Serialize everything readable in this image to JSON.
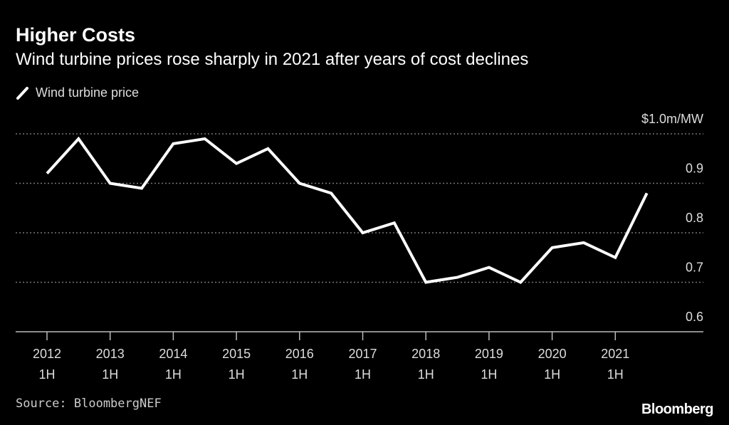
{
  "title": "Higher Costs",
  "subtitle": "Wind turbine prices rose sharply in 2021 after years of cost declines",
  "source": "Source: BloombergNEF",
  "logo": "Bloomberg",
  "chart_data": {
    "type": "line",
    "title": "Higher Costs",
    "subtitle": "Wind turbine prices rose sharply in 2021 after years of cost declines",
    "ylabel_unit": "$1.0m/MW",
    "ylim": [
      0.6,
      1.0
    ],
    "yticks": [
      0.6,
      0.7,
      0.8,
      0.9,
      1.0
    ],
    "ytick_labels": [
      "0.6",
      "0.7",
      "0.8",
      "0.9",
      "$1.0m/MW"
    ],
    "xtick_labels": [
      [
        "2012",
        "1H"
      ],
      [
        "2013",
        "1H"
      ],
      [
        "2014",
        "1H"
      ],
      [
        "2015",
        "1H"
      ],
      [
        "2016",
        "1H"
      ],
      [
        "2017",
        "1H"
      ],
      [
        "2018",
        "1H"
      ],
      [
        "2019",
        "1H"
      ],
      [
        "2020",
        "1H"
      ],
      [
        "2021",
        "1H"
      ]
    ],
    "grid": true,
    "legend_position": "top-left",
    "line_color": "#ffffff",
    "x": [
      "2012 1H",
      "2012 2H",
      "2013 1H",
      "2013 2H",
      "2014 1H",
      "2014 2H",
      "2015 1H",
      "2015 2H",
      "2016 1H",
      "2016 2H",
      "2017 1H",
      "2017 2H",
      "2018 1H",
      "2018 2H",
      "2019 1H",
      "2019 2H",
      "2020 1H",
      "2020 2H",
      "2021 1H",
      "2021 2H"
    ],
    "series": [
      {
        "name": "Wind turbine price",
        "values": [
          0.92,
          0.99,
          0.9,
          0.89,
          0.98,
          0.99,
          0.94,
          0.97,
          0.9,
          0.88,
          0.8,
          0.82,
          0.7,
          0.71,
          0.73,
          0.7,
          0.77,
          0.78,
          0.75,
          0.88
        ]
      }
    ]
  }
}
